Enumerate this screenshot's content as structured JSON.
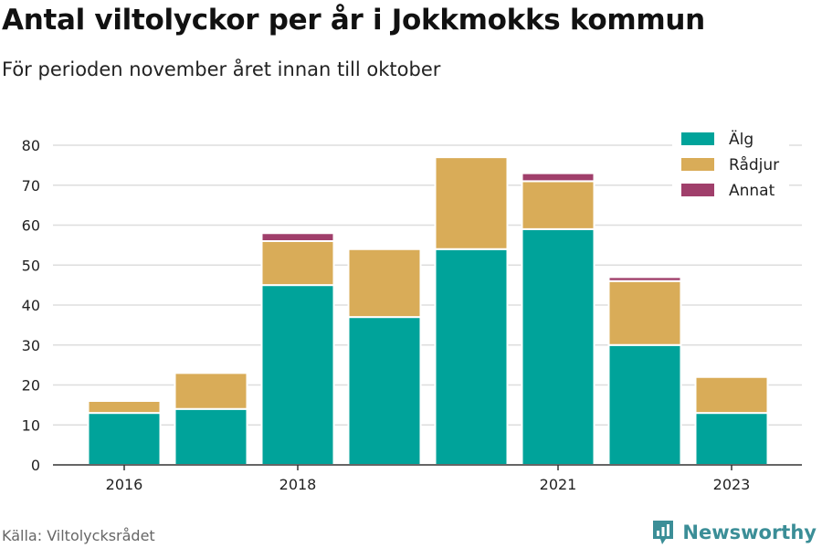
{
  "title": "Antal viltolyckor per år i Jokkmokks kommun",
  "subtitle": "För perioden november året innan till oktober",
  "source": "Källa: Viltolycksrådet",
  "brand": "Newsworthy",
  "colors": {
    "alg": "#00a39a",
    "radjur": "#d9ac58",
    "annat": "#a03f6b",
    "grid": "#dddddd",
    "brand": "#3b8e97"
  },
  "chart_data": {
    "type": "bar",
    "stacked": true,
    "categories": [
      "2016",
      "2017",
      "2018",
      "2019",
      "2020",
      "2021",
      "2022",
      "2023"
    ],
    "tick_labels": [
      "2016",
      "",
      "2018",
      "",
      "",
      "2021",
      "",
      "2023"
    ],
    "series": [
      {
        "name": "Älg",
        "color": "#00a39a",
        "values": [
          13,
          14,
          45,
          37,
          54,
          59,
          30,
          13
        ]
      },
      {
        "name": "Rådjur",
        "color": "#d9ac58",
        "values": [
          3,
          9,
          11,
          17,
          23,
          12,
          16,
          9
        ]
      },
      {
        "name": "Annat",
        "color": "#a03f6b",
        "values": [
          0,
          0,
          2,
          0,
          0,
          2,
          1,
          0
        ]
      }
    ],
    "yticks": [
      0,
      10,
      20,
      30,
      40,
      50,
      60,
      70,
      80
    ],
    "ylim": [
      0,
      80
    ],
    "grid": true,
    "legend": "top-right",
    "xlabel": "",
    "ylabel": ""
  }
}
